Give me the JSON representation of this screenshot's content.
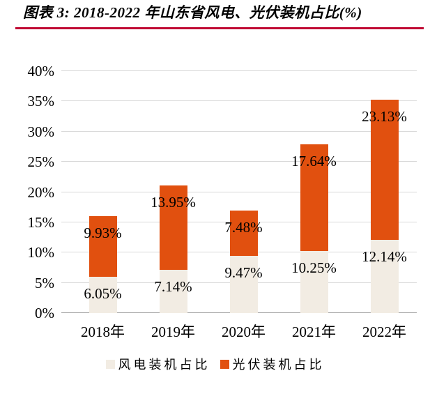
{
  "figure": {
    "title": "图表 3: 2018-2022 年山东省风电、光伏装机占比(%)"
  },
  "colors": {
    "rule": "#C00A33",
    "wind": "#F2ECE3",
    "solar": "#E1500F",
    "gridline": "#D9D9D9",
    "axis_line": "#A6A6A6"
  },
  "chart_data": {
    "type": "bar",
    "stacked": true,
    "title": "图表 3: 2018-2022 年山东省风电、光伏装机占比(%)",
    "categories": [
      "2018年",
      "2019年",
      "2020年",
      "2021年",
      "2022年"
    ],
    "series": [
      {
        "name": "风电装机占比",
        "color": "#F2ECE3",
        "values": [
          6.05,
          7.14,
          9.47,
          10.25,
          12.14
        ],
        "labels": [
          "6.05%",
          "7.14%",
          "9.47%",
          "10.25%",
          "12.14%"
        ]
      },
      {
        "name": "光伏装机占比",
        "color": "#E1500F",
        "values": [
          9.93,
          13.95,
          7.48,
          17.64,
          23.13
        ],
        "labels": [
          "9.93%",
          "13.95%",
          "7.48%",
          "17.64%",
          "23.13%"
        ]
      }
    ],
    "totals": [
      15.98,
      21.09,
      16.95,
      27.89,
      35.27
    ],
    "ylim": [
      0,
      40
    ],
    "ytick_step": 5,
    "yticks": [
      "0%",
      "5%",
      "10%",
      "15%",
      "20%",
      "25%",
      "30%",
      "35%",
      "40%"
    ],
    "grid": true,
    "legend_position": "bottom"
  }
}
